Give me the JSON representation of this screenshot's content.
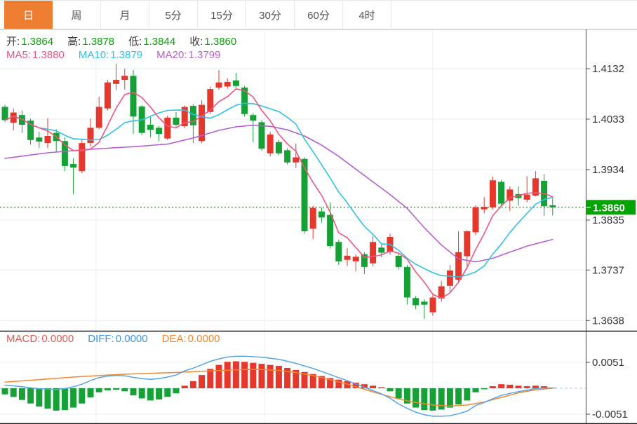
{
  "toolbar": {
    "tabs": [
      {
        "label": "日",
        "active": true
      },
      {
        "label": "周",
        "active": false
      },
      {
        "label": "月",
        "active": false
      },
      {
        "label": "5分",
        "active": false
      },
      {
        "label": "15分",
        "active": false
      },
      {
        "label": "30分",
        "active": false
      },
      {
        "label": "60分",
        "active": false
      },
      {
        "label": "4时",
        "active": false
      }
    ]
  },
  "legend": {
    "ohlc": [
      {
        "label": "开:",
        "value": "1.3864"
      },
      {
        "label": "高:",
        "value": "1.3878"
      },
      {
        "label": "低:",
        "value": "1.3844"
      },
      {
        "label": "收:",
        "value": "1.3860"
      }
    ],
    "ma": [
      {
        "label": "MA5:",
        "value": "1.3880",
        "color": "#f0557f"
      },
      {
        "label": "MA10:",
        "value": "1.3879",
        "color": "#2fc1e6"
      },
      {
        "label": "MA20:",
        "value": "1.3799",
        "color": "#b75fd0"
      }
    ]
  },
  "macd_legend": [
    {
      "label": "MACD:",
      "value": "0.0000",
      "color": "#e25b52"
    },
    {
      "label": "DIFF:",
      "value": "0.0000",
      "color": "#3e95e8"
    },
    {
      "label": "DEA:",
      "value": "0.0000",
      "color": "#f5862b"
    }
  ],
  "colors": {
    "candle_up": "#e5372c",
    "candle_down": "#16a136",
    "tab_active": "#ed7d31",
    "last_price_tag": "#00a400",
    "current_price_line": "#2fae2f",
    "grid": "#e9eff5",
    "axis_text": "#333333",
    "ma5": "#f0557f",
    "ma10": "#2fc1e6",
    "ma20": "#b75fd0",
    "diff_line": "#57a4e4",
    "dea_line": "#f08a30"
  },
  "chart_data": {
    "type": "candlestick+macd",
    "price_axis_ticks": [
      {
        "label": "1.4132",
        "value": 1.4132
      },
      {
        "label": "1.4033",
        "value": 1.4033
      },
      {
        "label": "1.3934",
        "value": 1.3934
      },
      {
        "label": "1.3835",
        "value": 1.3835
      },
      {
        "label": "1.3737",
        "value": 1.3737
      },
      {
        "label": "1.3638",
        "value": 1.3638
      }
    ],
    "macd_axis_ticks": [
      {
        "label": "0.0051",
        "value": 51
      },
      {
        "label": "-0.0051",
        "value": -51
      }
    ],
    "last_price": {
      "value": 1.386,
      "label": "1.3860"
    },
    "candles_format": "open,high,low,close (red=up green=down)",
    "candles": [
      [
        1.4057,
        1.4061,
        1.4027,
        1.4031
      ],
      [
        1.4026,
        1.4054,
        1.4011,
        1.4046
      ],
      [
        1.4041,
        1.405,
        1.4006,
        1.4022
      ],
      [
        1.403,
        1.4034,
        1.3983,
        1.3992
      ],
      [
        1.3997,
        1.4008,
        1.3976,
        1.3989
      ],
      [
        1.3986,
        1.4035,
        1.3976,
        1.4
      ],
      [
        1.4006,
        1.4013,
        1.3968,
        1.399
      ],
      [
        1.399,
        1.3997,
        1.3931,
        1.3941
      ],
      [
        1.3945,
        1.3956,
        1.3886,
        1.3938
      ],
      [
        1.3931,
        1.3995,
        1.3927,
        1.3986
      ],
      [
        1.3986,
        1.4034,
        1.3979,
        1.4016
      ],
      [
        1.4016,
        1.4077,
        1.4013,
        1.4057
      ],
      [
        1.4054,
        1.411,
        1.405,
        1.4105
      ],
      [
        1.4102,
        1.4142,
        1.409,
        1.411
      ],
      [
        1.411,
        1.4132,
        1.4091,
        1.4118
      ],
      [
        1.4118,
        1.4129,
        1.4004,
        1.4038
      ],
      [
        1.4058,
        1.406,
        1.4002,
        1.4006
      ],
      [
        1.4022,
        1.4038,
        1.3997,
        1.4012
      ],
      [
        1.4016,
        1.402,
        1.399,
        1.4004
      ],
      [
        1.3995,
        1.404,
        1.3992,
        1.4036
      ],
      [
        1.4036,
        1.4047,
        1.4018,
        1.4022
      ],
      [
        1.4019,
        1.406,
        1.4015,
        1.4057
      ],
      [
        1.4059,
        1.4062,
        1.3986,
        1.4021
      ],
      [
        1.399,
        1.407,
        1.3986,
        1.4061
      ],
      [
        1.4047,
        1.4097,
        1.4043,
        1.4092
      ],
      [
        1.4095,
        1.4129,
        1.4091,
        1.4105
      ],
      [
        1.4097,
        1.4113,
        1.4093,
        1.4106
      ],
      [
        1.4109,
        1.4124,
        1.4094,
        1.4098
      ],
      [
        1.4095,
        1.4098,
        1.4038,
        1.4043
      ],
      [
        1.4041,
        1.4045,
        1.3988,
        1.403
      ],
      [
        1.4027,
        1.4031,
        1.3971,
        1.3975
      ],
      [
        1.3966,
        1.4008,
        1.396,
        1.4003
      ],
      [
        1.3988,
        1.3992,
        1.3962,
        1.3966
      ],
      [
        1.3972,
        1.3976,
        1.3944,
        1.3948
      ],
      [
        1.3948,
        1.3985,
        1.3937,
        1.3958
      ],
      [
        1.3955,
        1.3958,
        1.3808,
        1.3813
      ],
      [
        1.3818,
        1.3863,
        1.3798,
        1.3859
      ],
      [
        1.3852,
        1.386,
        1.383,
        1.384
      ],
      [
        1.3845,
        1.387,
        1.3779,
        1.3784
      ],
      [
        1.3792,
        1.3796,
        1.3747,
        1.3754
      ],
      [
        1.3757,
        1.378,
        1.3745,
        1.3765
      ],
      [
        1.3754,
        1.3768,
        1.3734,
        1.3763
      ],
      [
        1.3768,
        1.3772,
        1.3729,
        1.3743
      ],
      [
        1.375,
        1.3804,
        1.3744,
        1.3792
      ],
      [
        1.3781,
        1.3789,
        1.3762,
        1.3771
      ],
      [
        1.3772,
        1.3808,
        1.3767,
        1.3802
      ],
      [
        1.3765,
        1.377,
        1.3738,
        1.3743
      ],
      [
        1.3743,
        1.3747,
        1.3669,
        1.3683
      ],
      [
        1.3682,
        1.3686,
        1.366,
        1.3668
      ],
      [
        1.3675,
        1.368,
        1.3641,
        1.3669
      ],
      [
        1.3654,
        1.3688,
        1.3647,
        1.3683
      ],
      [
        1.3681,
        1.3715,
        1.3675,
        1.3705
      ],
      [
        1.3706,
        1.3747,
        1.3695,
        1.3736
      ],
      [
        1.3718,
        1.3813,
        1.3712,
        1.3772
      ],
      [
        1.3764,
        1.3815,
        1.3739,
        1.3813
      ],
      [
        1.3811,
        1.3864,
        1.3806,
        1.386
      ],
      [
        1.3856,
        1.388,
        1.3848,
        1.3861
      ],
      [
        1.386,
        1.392,
        1.3856,
        1.3913
      ],
      [
        1.391,
        1.3914,
        1.3861,
        1.3867
      ],
      [
        1.3873,
        1.3901,
        1.3853,
        1.3895
      ],
      [
        1.3886,
        1.3901,
        1.3863,
        1.3878
      ],
      [
        1.3875,
        1.3921,
        1.387,
        1.3885
      ],
      [
        1.3883,
        1.3931,
        1.3881,
        1.3917
      ],
      [
        1.3912,
        1.3925,
        1.3843,
        1.3862
      ],
      [
        1.3864,
        1.3878,
        1.3844,
        1.386
      ]
    ],
    "ma20_anchors": [
      [
        0,
        1.3956
      ],
      [
        5,
        1.3967
      ],
      [
        10,
        1.3974
      ],
      [
        15,
        1.3979
      ],
      [
        19,
        1.3984
      ],
      [
        22,
        1.3996
      ],
      [
        25,
        1.4011
      ],
      [
        27,
        1.4018
      ],
      [
        29,
        1.4021
      ],
      [
        31,
        1.4019
      ],
      [
        33,
        1.4012
      ],
      [
        35,
        1.4
      ],
      [
        37,
        1.3982
      ],
      [
        39,
        1.396
      ],
      [
        41,
        1.3935
      ],
      [
        43,
        1.391
      ],
      [
        45,
        1.3885
      ],
      [
        47,
        1.3858
      ],
      [
        49,
        1.382
      ],
      [
        51,
        1.3786
      ],
      [
        53,
        1.3759
      ],
      [
        55,
        1.3753
      ],
      [
        57,
        1.376
      ],
      [
        59,
        1.3772
      ],
      [
        61,
        1.3784
      ],
      [
        64,
        1.3797
      ]
    ],
    "macd_scale": 0.0001,
    "macd_hist": [
      -12,
      -17,
      -23,
      -30,
      -36,
      -40,
      -44,
      -43,
      -38,
      -30,
      -18,
      -8,
      -4,
      -3,
      -6,
      -14,
      -20,
      -24,
      -22,
      -17,
      -10,
      5,
      14,
      26,
      38,
      46,
      52,
      53,
      52,
      50,
      48,
      46,
      44,
      40,
      36,
      32,
      28,
      24,
      20,
      17,
      14,
      11,
      8,
      5,
      2,
      -6,
      -20,
      -30,
      -38,
      -43,
      -44,
      -42,
      -38,
      -32,
      -24,
      -8,
      -2,
      4,
      8,
      7,
      5,
      4,
      5,
      4,
      1
    ],
    "diff": [
      6,
      4.8,
      3,
      0.8,
      -1,
      -1.7,
      -2.5,
      -0.7,
      3,
      8,
      15,
      21,
      24,
      25.3,
      24.5,
      21.3,
      19,
      17.5,
      19,
      22,
      26,
      34.3,
      39.5,
      46.3,
      53,
      57.8,
      61.5,
      62.8,
      63,
      62,
      61,
      59,
      57,
      53,
      49,
      44,
      39,
      33,
      27,
      21,
      15,
      8.5,
      2,
      -4.5,
      -11,
      -19.5,
      -31,
      -39.5,
      -47,
      -52,
      -55,
      -55,
      -54,
      -50,
      -45,
      -34,
      -28,
      -20.5,
      -14,
      -10,
      -6.5,
      -4,
      -0.5,
      0.5,
      0.5
    ],
    "dea": [
      12,
      13.3,
      14.5,
      15.8,
      17,
      18.3,
      19.5,
      20.8,
      22,
      23,
      24,
      25,
      26,
      26.8,
      27.5,
      28.3,
      29,
      29.5,
      30,
      30.5,
      31,
      31.8,
      32.5,
      33.3,
      34,
      34.8,
      35.5,
      36.3,
      37,
      37,
      37,
      36,
      35,
      33,
      31,
      28,
      25,
      21,
      17,
      12.5,
      8,
      3,
      -2,
      -7,
      -12,
      -16.5,
      -21,
      -24.5,
      -28,
      -30.5,
      -33,
      -34,
      -35,
      -34,
      -33,
      -30,
      -27,
      -22.5,
      -18,
      -13.5,
      -9,
      -6,
      -3,
      -1.5,
      0
    ]
  }
}
